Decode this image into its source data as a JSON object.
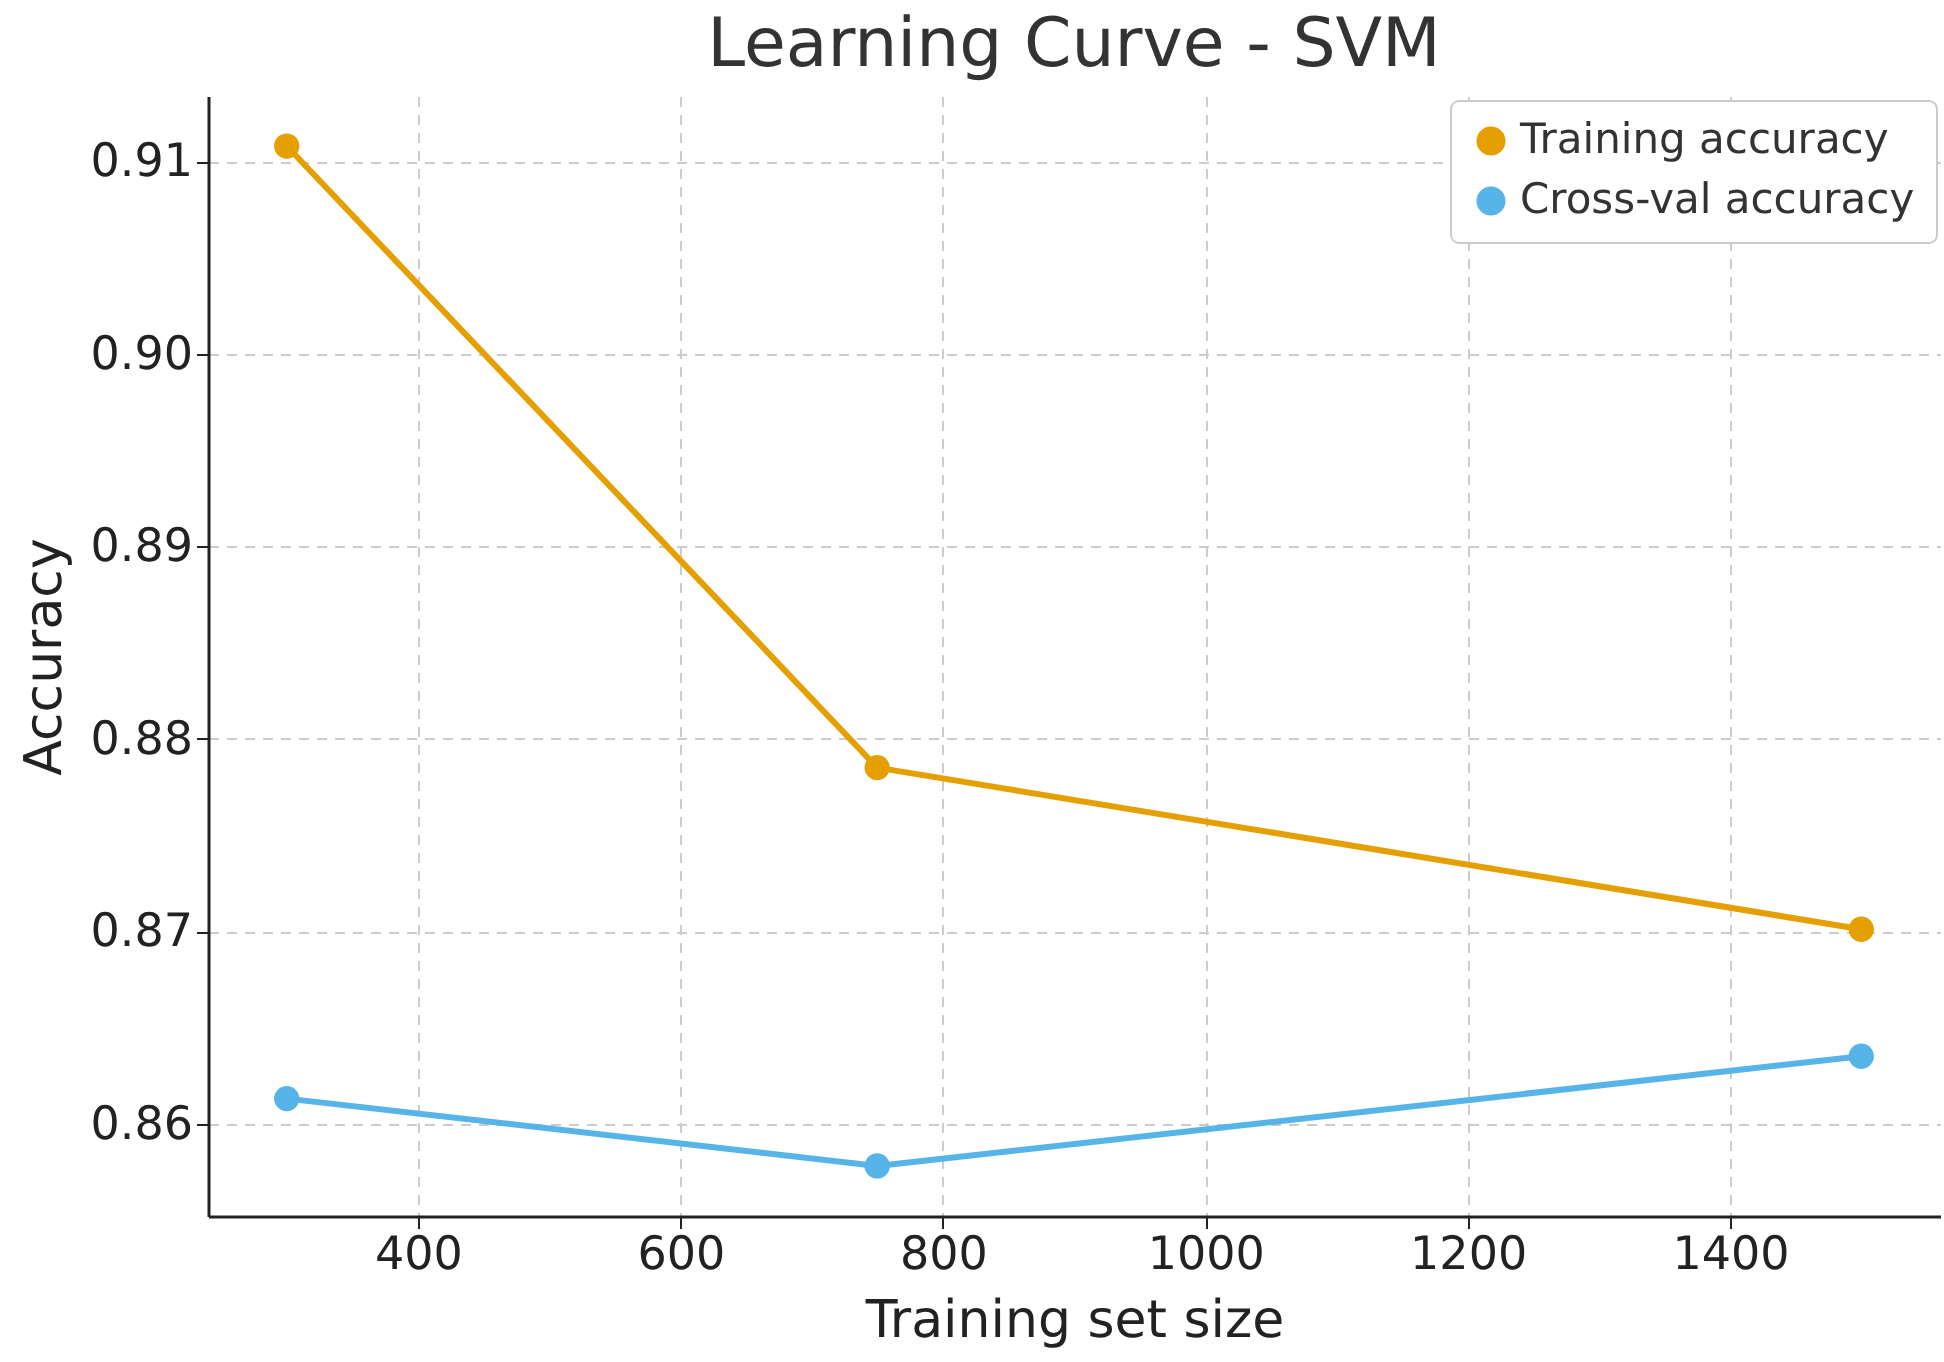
{
  "chart_data": {
    "type": "line",
    "title": "Learning Curve - SVM",
    "xlabel": "Training set size",
    "ylabel": "Accuracy",
    "x": [
      300,
      750,
      1500
    ],
    "series": [
      {
        "name": "Training accuracy",
        "color": "#e69f00",
        "values": [
          0.9108,
          0.8785,
          0.8701
        ]
      },
      {
        "name": "Cross-val accuracy",
        "color": "#56b4e9",
        "values": [
          0.8613,
          0.8578,
          0.8635
        ]
      }
    ],
    "xlim": [
      240,
      1560
    ],
    "xticks": [
      400,
      600,
      800,
      1000,
      1200,
      1400
    ],
    "ylim": [
      0.8552,
      0.9134
    ],
    "yticks": [
      0.86,
      0.87,
      0.88,
      0.89,
      {
        "value": 0.9,
        "label": "0.90"
      },
      0.91
    ],
    "grid": true,
    "legend": "top right",
    "marker": "circle",
    "line_style": "solid"
  }
}
